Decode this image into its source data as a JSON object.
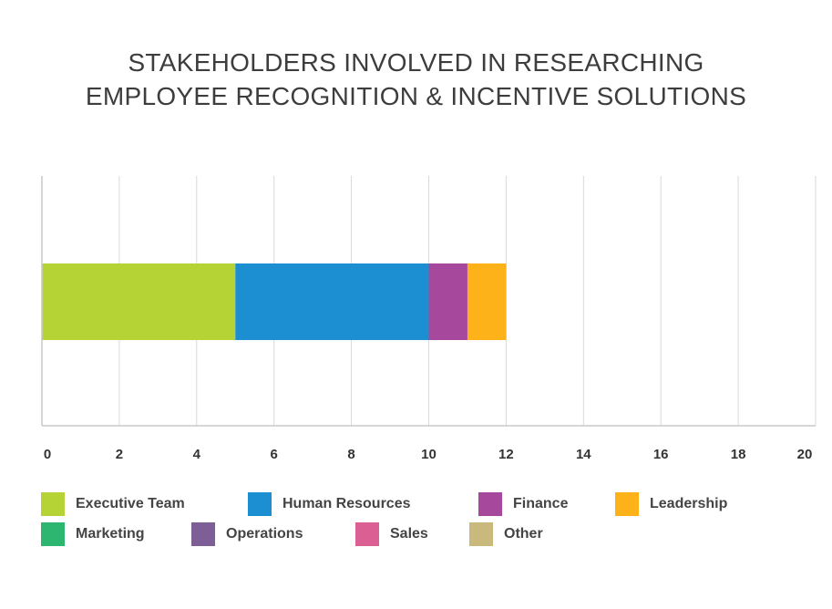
{
  "chart_data": {
    "type": "bar",
    "orientation": "horizontal",
    "stacked": true,
    "title": [
      "STAKEHOLDERS INVOLVED IN RESEARCHING",
      "EMPLOYEE RECOGNITION & INCENTIVE SOLUTIONS"
    ],
    "xlim": [
      0,
      20
    ],
    "x_ticks": [
      "0",
      "2",
      "4",
      "6",
      "8",
      "10",
      "12",
      "14",
      "16",
      "18",
      "20"
    ],
    "grid": "vertical",
    "legend_position": "bottom",
    "series": [
      {
        "name": "Executive Team",
        "value": 5,
        "color": "#b5d334"
      },
      {
        "name": "Human Resources",
        "value": 5,
        "color": "#1b8fd1"
      },
      {
        "name": "Finance",
        "value": 1,
        "color": "#a6489b"
      },
      {
        "name": "Leadership",
        "value": 1,
        "color": "#fdb21a"
      },
      {
        "name": "Marketing",
        "value": 0,
        "color": "#2cb670"
      },
      {
        "name": "Operations",
        "value": 0,
        "color": "#7d5e97"
      },
      {
        "name": "Sales",
        "value": 0,
        "color": "#dc5f94"
      },
      {
        "name": "Other",
        "value": 0,
        "color": "#c9b97c"
      }
    ]
  }
}
